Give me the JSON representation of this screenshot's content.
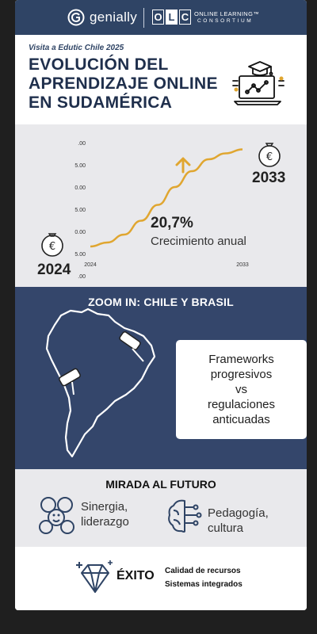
{
  "header": {
    "brand": "genially",
    "partner_letters": [
      "O",
      "L",
      "C"
    ],
    "partner_line1": "ONLINE LEARNING™",
    "partner_line2": "CONSORTIUM"
  },
  "intro": {
    "kicker": "Visita a Edutic Chile 2025",
    "title_lines": [
      "EVOLUCIÓN DEL",
      "APRENDIZAJE ONLINE",
      "EN SUDAMÉRICA"
    ]
  },
  "growth": {
    "year_start": "2024",
    "year_end": "2033",
    "rate": "20,7%",
    "rate_label": "Crecimiento anual",
    "colors": {
      "curve": "#e0a630",
      "arrow": "#e0a630"
    }
  },
  "chart_data": {
    "type": "line",
    "title": "",
    "xlabel": "",
    "ylabel": "",
    "x_ticks": [
      "2024",
      "2033"
    ],
    "y_ticks": [
      ".00",
      "5.00",
      "0.00",
      "5.00",
      "0.00",
      "5.00",
      ".00"
    ],
    "series": [
      {
        "values_note": "",
        "x": [
          2024,
          2025,
          2026,
          2027,
          2028,
          2029,
          2030,
          2031,
          2032,
          2033
        ],
        "y": [
          0.4,
          0.6,
          1.0,
          1.7,
          2.5,
          3.4,
          4.2,
          4.8,
          5.1,
          5.3
        ]
      }
    ],
    "ylim": [
      0,
      5.6
    ],
    "grid": false,
    "legend": "none"
  },
  "zoom": {
    "title": "ZOOM IN: CHILE Y BRASIL",
    "callout_lines": [
      "Frameworks",
      "progresivos",
      "vs",
      "regulaciones",
      "anticuadas"
    ]
  },
  "future": {
    "title": "MIRADA AL FUTURO",
    "item1_lines": [
      "Sinergia,",
      "liderazgo"
    ],
    "item2_lines": [
      "Pedagogía,",
      "cultura"
    ]
  },
  "success": {
    "label": "ÉXITO",
    "item1": "Calidad de recursos",
    "item2": "Sistemas integrados"
  }
}
